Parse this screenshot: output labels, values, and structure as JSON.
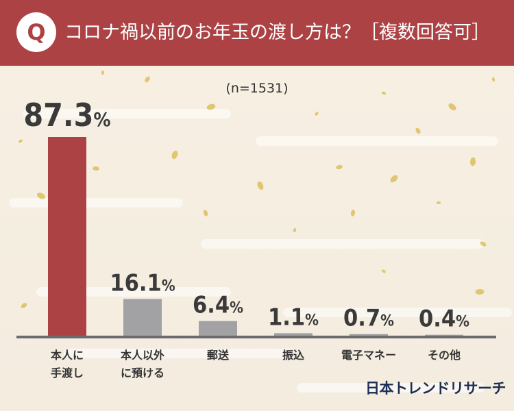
{
  "header": {
    "badge": "Q",
    "title": "コロナ禍以前のお年玉の渡し方は？［複数回答可］"
  },
  "sample_size": "(n=1531)",
  "brand": "日本トレンドリサーチ",
  "colors": {
    "header_bg": "#ad4245",
    "highlight_bar": "#ad4245",
    "bar": "#a2a2a4",
    "axis": "#6b6b6d",
    "background": "#f5efe4",
    "gold_flakes": "#d9b84a"
  },
  "chart_data": {
    "type": "bar",
    "categories": [
      "本人に手渡し",
      "本人以外に預ける",
      "郵送",
      "振込",
      "電子マネー",
      "その他"
    ],
    "category_lines": [
      [
        "本人に",
        "手渡し"
      ],
      [
        "本人以外",
        "に預ける"
      ],
      [
        "郵送"
      ],
      [
        "振込"
      ],
      [
        "電子マネー"
      ],
      [
        "その他"
      ]
    ],
    "values": [
      87.3,
      16.1,
      6.4,
      1.1,
      0.7,
      0.4
    ],
    "value_labels": [
      "87.3",
      "16.1",
      "6.4",
      "1.1",
      "0.7",
      "0.4"
    ],
    "unit": "%",
    "highlight_index": 0,
    "title": "コロナ禍以前のお年玉の渡し方は？［複数回答可］",
    "xlabel": "",
    "ylabel": "",
    "ylim": [
      0,
      87.3
    ],
    "grid": false,
    "legend": "none"
  }
}
